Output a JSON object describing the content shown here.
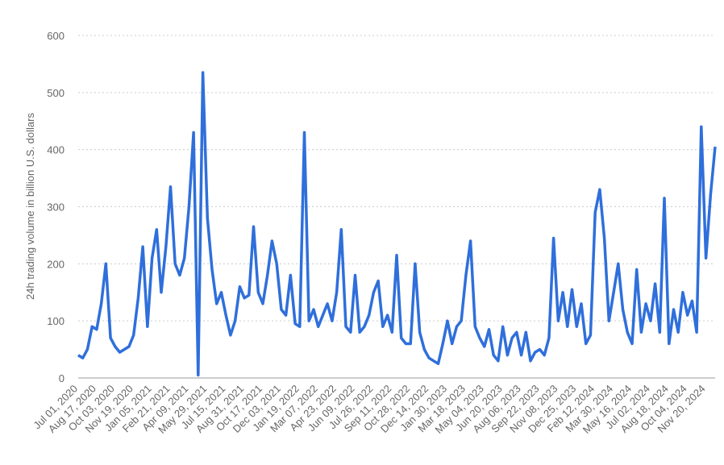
{
  "chart_data": {
    "type": "line",
    "y_label": "24h trading volume in billion U.S. dollars",
    "categories": [
      "Jul 01, 2020",
      null,
      null,
      null,
      "Aug 17, 2020",
      null,
      null,
      null,
      "Oct 03, 2020",
      null,
      null,
      null,
      "Nov 19, 2020",
      null,
      null,
      null,
      "Jan 05, 2021",
      null,
      null,
      null,
      "Feb 21, 2021",
      null,
      null,
      null,
      "Apr 09, 2021",
      null,
      null,
      null,
      "May 29, 2021",
      null,
      null,
      null,
      "Jul 15, 2021",
      null,
      null,
      null,
      "Aug 31, 2021",
      null,
      null,
      null,
      "Oct 17, 2021",
      null,
      null,
      null,
      "Dec 03, 2021",
      null,
      null,
      null,
      "Jan 19, 2022",
      null,
      null,
      null,
      "Mar 07, 2022",
      null,
      null,
      null,
      "Apr 23, 2022",
      null,
      null,
      null,
      "Jun 09, 2022",
      null,
      null,
      null,
      "Jul 26, 2022",
      null,
      null,
      null,
      "Sep 11, 2022",
      null,
      null,
      null,
      "Oct 28, 2022",
      null,
      null,
      null,
      "Dec 14, 2022",
      null,
      null,
      null,
      "Jan 30, 2023",
      null,
      null,
      null,
      "Mar 18, 2023",
      null,
      null,
      null,
      "May 04, 2023",
      null,
      null,
      null,
      "Jun 20, 2023",
      null,
      null,
      null,
      "Aug 06, 2023",
      null,
      null,
      null,
      "Sep 22, 2023",
      null,
      null,
      null,
      "Nov 08, 2023",
      null,
      null,
      null,
      "Dec 25, 2023",
      null,
      null,
      null,
      "Feb 12, 2024",
      null,
      null,
      null,
      "Mar 30, 2024",
      null,
      null,
      null,
      "May 16, 2024",
      null,
      null,
      null,
      "Jul 02, 2024",
      null,
      null,
      null,
      "Aug 18, 2024",
      null,
      null,
      null,
      "Oct 04, 2024",
      null,
      null,
      null,
      "Nov 20, 2024",
      null,
      null
    ],
    "series": [
      {
        "name": "24h trading volume",
        "color": "#2f6fdb",
        "values": [
          40,
          35,
          50,
          90,
          85,
          130,
          200,
          70,
          55,
          45,
          50,
          55,
          75,
          140,
          230,
          90,
          210,
          260,
          150,
          230,
          335,
          200,
          180,
          210,
          300,
          430,
          5,
          535,
          280,
          190,
          130,
          150,
          110,
          75,
          100,
          160,
          140,
          145,
          265,
          150,
          130,
          180,
          240,
          200,
          120,
          110,
          180,
          95,
          90,
          430,
          100,
          120,
          90,
          110,
          130,
          100,
          150,
          260,
          90,
          80,
          180,
          80,
          90,
          110,
          150,
          170,
          90,
          110,
          80,
          215,
          70,
          60,
          60,
          200,
          80,
          50,
          35,
          30,
          25,
          60,
          100,
          60,
          90,
          100,
          180,
          240,
          90,
          70,
          55,
          85,
          40,
          30,
          90,
          40,
          70,
          80,
          40,
          80,
          30,
          45,
          50,
          40,
          70,
          245,
          100,
          150,
          90,
          155,
          90,
          130,
          60,
          75,
          290,
          330,
          245,
          100,
          150,
          200,
          120,
          80,
          60,
          190,
          80,
          130,
          100,
          165,
          80,
          315,
          60,
          120,
          80,
          150,
          110,
          135,
          80,
          440,
          210,
          320,
          405
        ]
      }
    ],
    "ylim": [
      0,
      600
    ],
    "yticks": [
      0,
      100,
      200,
      300,
      400,
      500,
      600
    ],
    "grid": true
  }
}
